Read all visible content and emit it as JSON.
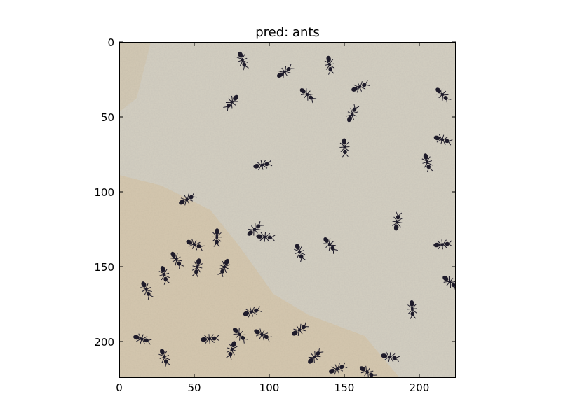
{
  "title": "pred: ants",
  "image": {
    "subject": "black ants on white rice grains over a light wooden surface",
    "colors": {
      "rice": "#c9c4b6",
      "wood": "#cdb58f",
      "ant": "#1e1b2a",
      "frame": "#000000"
    }
  },
  "axes": {
    "x_ticks": [
      "0",
      "50",
      "100",
      "150",
      "200"
    ],
    "y_ticks": [
      "0",
      "50",
      "100",
      "150",
      "200"
    ],
    "x_range": [
      0,
      224
    ],
    "y_range": [
      0,
      224
    ]
  },
  "ants": [
    [
      82,
      12,
      1.2
    ],
    [
      75,
      40,
      2.3
    ],
    [
      110,
      20,
      -0.6
    ],
    [
      140,
      15,
      1.4
    ],
    [
      125,
      35,
      0.7
    ],
    [
      160,
      30,
      -0.4
    ],
    [
      155,
      48,
      -1.1
    ],
    [
      215,
      35,
      0.8
    ],
    [
      150,
      70,
      1.5
    ],
    [
      205,
      80,
      1.3
    ],
    [
      215,
      65,
      0.3
    ],
    [
      95,
      82,
      -0.2
    ],
    [
      45,
      105,
      -0.5
    ],
    [
      65,
      130,
      1.6
    ],
    [
      90,
      125,
      -0.7
    ],
    [
      97,
      130,
      0.1
    ],
    [
      120,
      140,
      1.2
    ],
    [
      140,
      135,
      0.9
    ],
    [
      50,
      135,
      0.4
    ],
    [
      38,
      145,
      1.0
    ],
    [
      30,
      155,
      1.3
    ],
    [
      52,
      150,
      1.8
    ],
    [
      70,
      150,
      2.0
    ],
    [
      18,
      165,
      1.1
    ],
    [
      88,
      180,
      -0.3
    ],
    [
      80,
      195,
      0.8
    ],
    [
      95,
      195,
      0.5
    ],
    [
      60,
      198,
      -0.1
    ],
    [
      75,
      205,
      1.9
    ],
    [
      120,
      192,
      -0.6
    ],
    [
      15,
      198,
      0.3
    ],
    [
      30,
      210,
      1.2
    ],
    [
      130,
      210,
      -0.8
    ],
    [
      145,
      218,
      -0.4
    ],
    [
      165,
      220,
      0.6
    ],
    [
      185,
      120,
      -1.4
    ],
    [
      215,
      135,
      -0.1
    ],
    [
      195,
      178,
      1.5
    ],
    [
      220,
      160,
      0.7
    ],
    [
      180,
      210,
      0.2
    ]
  ]
}
